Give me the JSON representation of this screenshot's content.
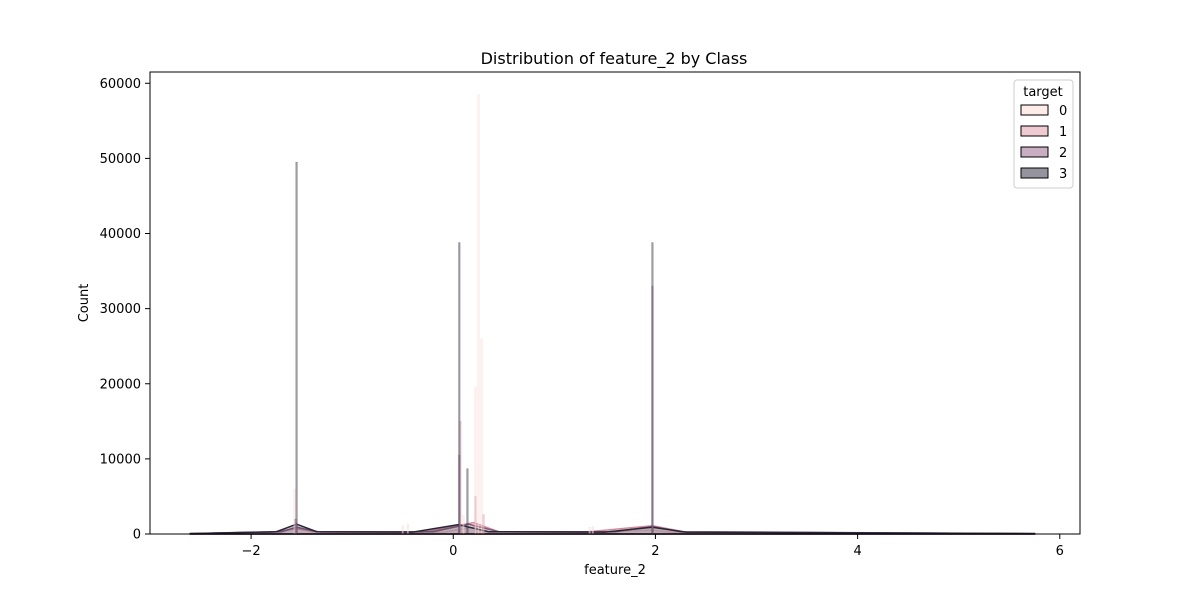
{
  "chart_data": {
    "type": "histogram",
    "title": "Distribution of feature_2 by Class",
    "xlabel": "feature_2",
    "ylabel": "Count",
    "xlim": [
      -3.0,
      6.2
    ],
    "ylim": [
      0,
      61500
    ],
    "xticks": [
      -2,
      0,
      2,
      4,
      6
    ],
    "xtick_labels": [
      "−2",
      "0",
      "2",
      "4",
      "6"
    ],
    "yticks": [
      0,
      10000,
      20000,
      30000,
      40000,
      50000,
      60000
    ],
    "ytick_labels": [
      "0",
      "10000",
      "20000",
      "30000",
      "40000",
      "50000",
      "60000"
    ],
    "legend": {
      "title": "target",
      "position": "top-right",
      "entries": [
        "0",
        "1",
        "2",
        "3"
      ]
    },
    "series": [
      {
        "name": "0",
        "color": "#fce4de",
        "edge": "#ecc8c4",
        "spikes": [
          {
            "x": 0.25,
            "count": 58500
          },
          {
            "x": 0.22,
            "count": 19500
          },
          {
            "x": 0.28,
            "count": 26000
          },
          {
            "x": -1.57,
            "count": 6000
          },
          {
            "x": -0.5,
            "count": 1100
          },
          {
            "x": -0.45,
            "count": 1300
          },
          {
            "x": 1.35,
            "count": 900
          },
          {
            "x": 1.38,
            "count": 1000
          },
          {
            "x": 0.1,
            "count": 2500
          }
        ],
        "kde": [
          [
            -2.6,
            50
          ],
          [
            -1.7,
            300
          ],
          [
            -1.55,
            800
          ],
          [
            -1.4,
            300
          ],
          [
            -0.1,
            250
          ],
          [
            0.25,
            1000
          ],
          [
            0.45,
            300
          ],
          [
            1.2,
            150
          ],
          [
            1.97,
            500
          ],
          [
            2.2,
            150
          ],
          [
            5.75,
            50
          ]
        ]
      },
      {
        "name": "1",
        "color": "#e8b4be",
        "edge": "#d48a9c",
        "spikes": [
          {
            "x": 0.07,
            "count": 15000
          },
          {
            "x": 0.22,
            "count": 5000
          },
          {
            "x": 0.3,
            "count": 2600
          },
          {
            "x": -1.55,
            "count": 1500
          },
          {
            "x": 1.97,
            "count": 1200
          }
        ],
        "kde": [
          [
            -2.6,
            50
          ],
          [
            -1.8,
            250
          ],
          [
            -1.55,
            700
          ],
          [
            -1.3,
            250
          ],
          [
            -0.3,
            250
          ],
          [
            0.2,
            1500
          ],
          [
            0.45,
            300
          ],
          [
            1.3,
            250
          ],
          [
            1.97,
            1100
          ],
          [
            2.3,
            250
          ],
          [
            5.75,
            50
          ]
        ]
      },
      {
        "name": "2",
        "color": "#b28aa5",
        "edge": "#7b5a78",
        "spikes": [
          {
            "x": 1.97,
            "count": 33000
          },
          {
            "x": 0.06,
            "count": 10500
          },
          {
            "x": -1.56,
            "count": 2000
          }
        ],
        "kde": [
          [
            -2.6,
            50
          ],
          [
            -1.7,
            300
          ],
          [
            -1.55,
            900
          ],
          [
            -1.35,
            300
          ],
          [
            -0.2,
            300
          ],
          [
            0.15,
            1300
          ],
          [
            0.45,
            300
          ],
          [
            1.6,
            300
          ],
          [
            1.97,
            1000
          ],
          [
            2.25,
            300
          ],
          [
            5.75,
            50
          ]
        ]
      },
      {
        "name": "3",
        "color": "#3e3a4e",
        "edge": "#2a2536",
        "spikes": [
          {
            "x": -1.55,
            "count": 49500
          },
          {
            "x": 0.06,
            "count": 38800
          },
          {
            "x": 1.97,
            "count": 38800
          },
          {
            "x": 0.14,
            "count": 8700
          }
        ],
        "kde": [
          [
            -2.6,
            50
          ],
          [
            -1.75,
            300
          ],
          [
            -1.55,
            1300
          ],
          [
            -1.35,
            300
          ],
          [
            -0.4,
            250
          ],
          [
            0.05,
            1250
          ],
          [
            0.35,
            300
          ],
          [
            1.5,
            250
          ],
          [
            1.97,
            900
          ],
          [
            2.3,
            250
          ],
          [
            5.75,
            50
          ]
        ]
      }
    ]
  }
}
